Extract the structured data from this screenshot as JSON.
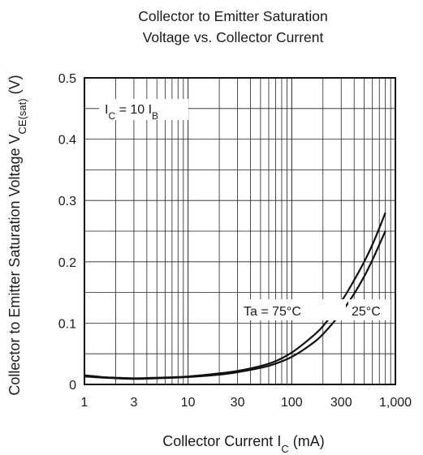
{
  "chart_data": {
    "type": "line",
    "title_lines": [
      "Collector to Emitter Saturation",
      "Voltage vs. Collector Current"
    ],
    "xlabel_main": "Collector Current  I",
    "xlabel_sub": "C",
    "xlabel_unit": "  (mA)",
    "ylabel_main": "Collector to Emitter Saturation Voltage  V",
    "ylabel_sub": "CE(sat)",
    "ylabel_unit": "  (V)",
    "x_scale": "log",
    "xlim": [
      1,
      1000
    ],
    "ylim": [
      0,
      0.5
    ],
    "x_ticks": [
      1,
      3,
      10,
      30,
      100,
      300,
      1000
    ],
    "x_tick_labels": [
      "1",
      "3",
      "10",
      "30",
      "100",
      "300",
      "1,000"
    ],
    "y_ticks": [
      0,
      0.1,
      0.2,
      0.3,
      0.4,
      0.5
    ],
    "y_tick_labels": [
      "0",
      "0.1",
      "0.2",
      "0.3",
      "0.4",
      "0.5"
    ],
    "grid": true,
    "condition": {
      "main": "I",
      "sub1": "C",
      "mid": " = 10 I",
      "sub2": "B"
    },
    "series": [
      {
        "name": "Ta = 75°C",
        "x": [
          1,
          1.5,
          2,
          3,
          5,
          10,
          20,
          30,
          50,
          70,
          100,
          150,
          200,
          300,
          400,
          500,
          600,
          700,
          800
        ],
        "y": [
          0.015,
          0.012,
          0.011,
          0.01,
          0.011,
          0.013,
          0.018,
          0.022,
          0.03,
          0.038,
          0.052,
          0.075,
          0.095,
          0.135,
          0.17,
          0.2,
          0.228,
          0.255,
          0.28
        ]
      },
      {
        "name": "25°C",
        "x": [
          1,
          1.5,
          2,
          3,
          5,
          10,
          20,
          30,
          50,
          70,
          100,
          150,
          200,
          300,
          400,
          500,
          600,
          700,
          800
        ],
        "y": [
          0.013,
          0.011,
          0.01,
          0.009,
          0.01,
          0.012,
          0.016,
          0.02,
          0.027,
          0.034,
          0.045,
          0.064,
          0.082,
          0.117,
          0.148,
          0.176,
          0.203,
          0.228,
          0.25
        ]
      }
    ]
  }
}
